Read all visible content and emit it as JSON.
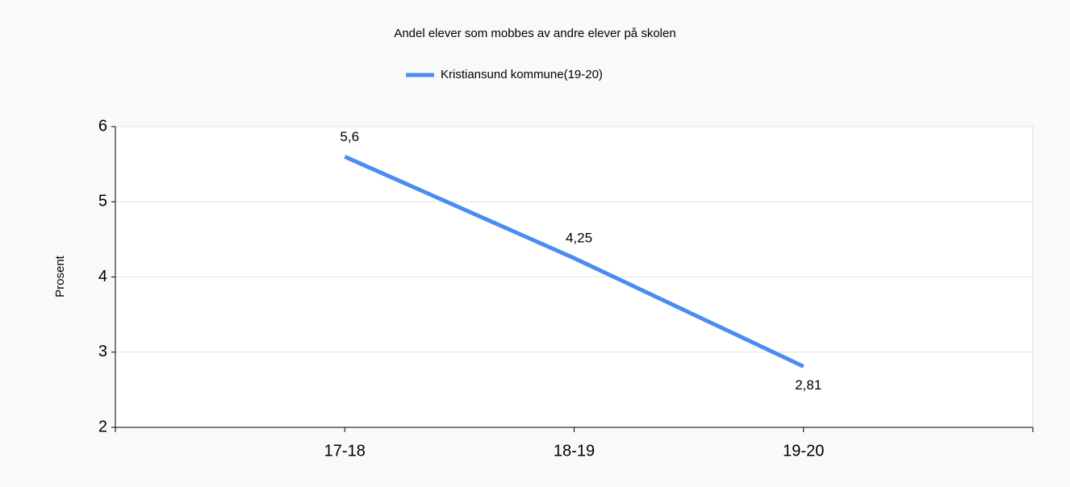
{
  "chart_data": {
    "type": "line",
    "title": "Andel elever som mobbes av andre elever på skolen",
    "y_label": "Prosent",
    "categories": [
      "17-18",
      "18-19",
      "19-20"
    ],
    "series": [
      {
        "name": "Kristiansund kommune(19-20)",
        "color": "#4a8cf0",
        "values": [
          5.6,
          4.25,
          2.81
        ],
        "value_labels": [
          "5,6",
          "4,25",
          "2,81"
        ]
      }
    ],
    "ylim": [
      2,
      6
    ],
    "yticks": [
      2,
      3,
      4,
      5,
      6
    ],
    "grid": true,
    "legend": "top"
  }
}
